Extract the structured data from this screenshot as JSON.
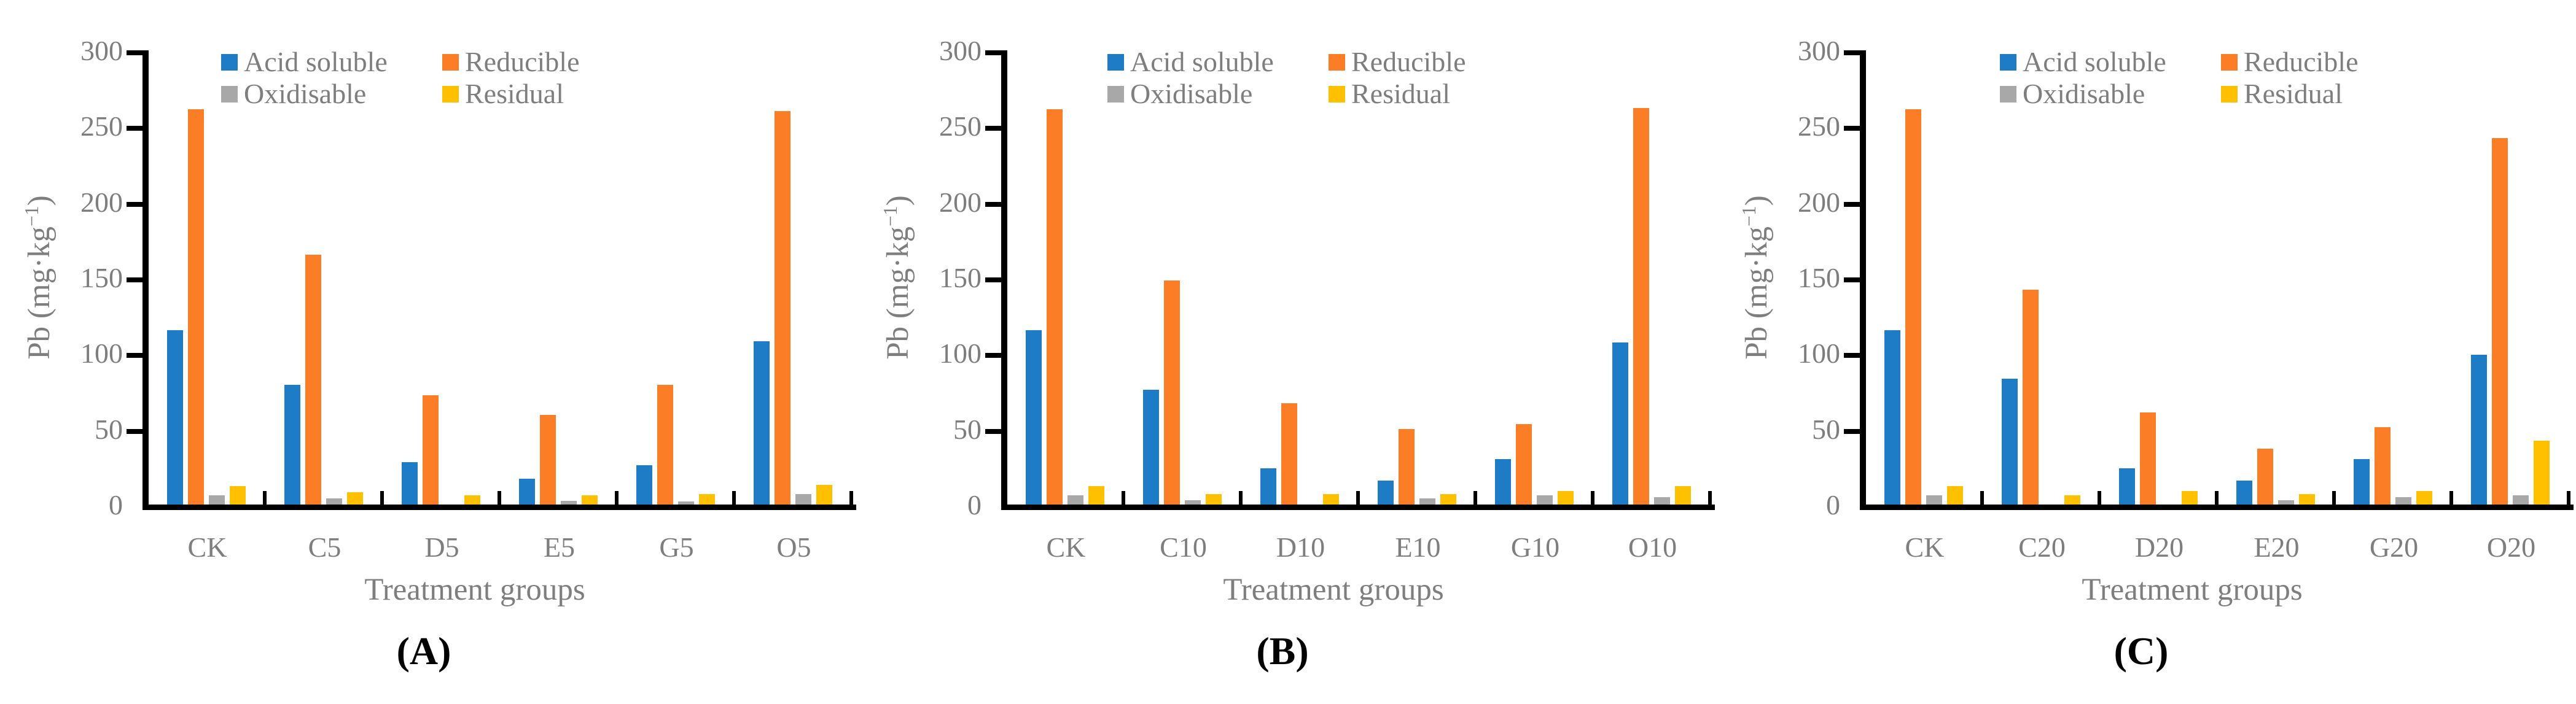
{
  "figure": {
    "ylabel_pre": "Pb (mg·kg",
    "ylabel_sup": "−1",
    "ylabel_post": ")",
    "xlabel": "Treatment groups",
    "ytick_labels": [
      "0",
      "50",
      "100",
      "150",
      "200",
      "250",
      "300"
    ],
    "series": [
      {
        "label": "Acid soluble",
        "color": "#1E7BC6"
      },
      {
        "label": "Reducible",
        "color": "#FB7D25"
      },
      {
        "label": "Oxidisable",
        "color": "#A8A8A8"
      },
      {
        "label": "Residual",
        "color": "#FFC000"
      }
    ],
    "text_color": "#7E7E7E",
    "axis_color": "#000000"
  },
  "chart_data": [
    {
      "type": "bar",
      "panel_label": "(A)",
      "categories": [
        "CK",
        "C5",
        "D5",
        "E5",
        "G5",
        "O5"
      ],
      "xlabel": "Treatment groups",
      "ylabel": "Pb (mg·kg−1)",
      "ylim": [
        0,
        300
      ],
      "yticks": [
        0,
        50,
        100,
        150,
        200,
        250,
        300
      ],
      "legend_position": "top-left-inside",
      "series": [
        {
          "name": "Acid soluble",
          "values": [
            115,
            79,
            28,
            17,
            26,
            108
          ]
        },
        {
          "name": "Reducible",
          "values": [
            261,
            165,
            72,
            59,
            79,
            260
          ]
        },
        {
          "name": "Oxidisable",
          "values": [
            6,
            4,
            0,
            2.5,
            2,
            7
          ]
        },
        {
          "name": "Residual",
          "values": [
            12,
            8,
            6,
            6,
            7,
            13
          ]
        }
      ],
      "legend_x": 360
    },
    {
      "type": "bar",
      "panel_label": "(B)",
      "categories": [
        "CK",
        "C10",
        "D10",
        "E10",
        "G10",
        "O10"
      ],
      "xlabel": "Treatment groups",
      "ylabel": "Pb (mg·kg−1)",
      "ylim": [
        0,
        300
      ],
      "yticks": [
        0,
        50,
        100,
        150,
        200,
        250,
        300
      ],
      "legend_position": "top-left-inside",
      "series": [
        {
          "name": "Acid soluble",
          "values": [
            115,
            76,
            24,
            16,
            30,
            107
          ]
        },
        {
          "name": "Reducible",
          "values": [
            261,
            148,
            67,
            50,
            53,
            262
          ]
        },
        {
          "name": "Oxidisable",
          "values": [
            6,
            3,
            0,
            4,
            6,
            5
          ]
        },
        {
          "name": "Residual",
          "values": [
            12,
            7,
            7,
            7,
            9,
            12
          ]
        }
      ],
      "legend_x": 405
    },
    {
      "type": "bar",
      "panel_label": "(C)",
      "categories": [
        "CK",
        "C20",
        "D20",
        "E20",
        "G20",
        "O20"
      ],
      "xlabel": "Treatment groups",
      "ylabel": "Pb (mg·kg−1)",
      "ylim": [
        0,
        300
      ],
      "yticks": [
        0,
        50,
        100,
        150,
        200,
        250,
        300
      ],
      "legend_position": "top-left-inside",
      "series": [
        {
          "name": "Acid soluble",
          "values": [
            115,
            83,
            24,
            16,
            30,
            99
          ]
        },
        {
          "name": "Reducible",
          "values": [
            261,
            142,
            61,
            37,
            51,
            242
          ]
        },
        {
          "name": "Oxidisable",
          "values": [
            6,
            0,
            0,
            3,
            5,
            6
          ]
        },
        {
          "name": "Residual",
          "values": [
            12,
            6,
            9,
            7,
            9,
            42
          ]
        }
      ],
      "legend_x": 460
    }
  ]
}
